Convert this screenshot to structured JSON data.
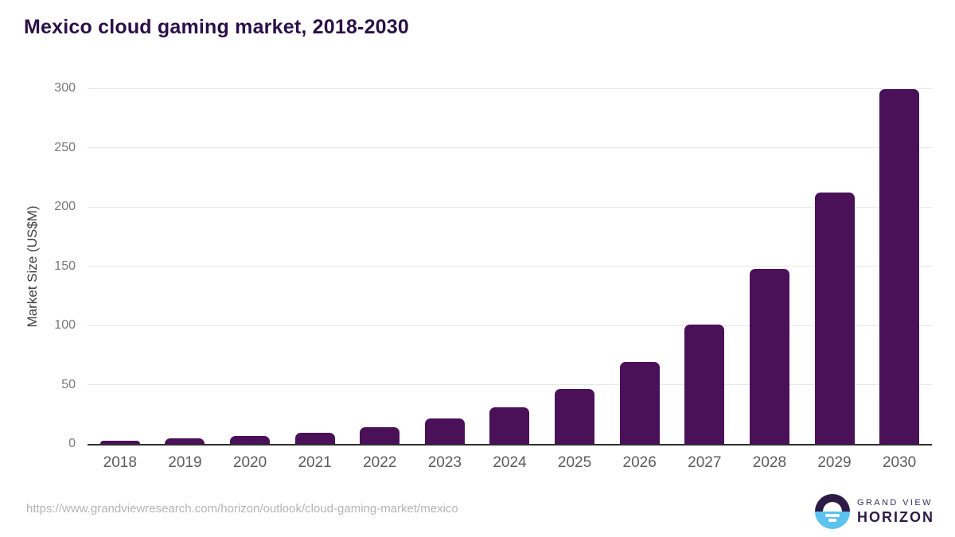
{
  "title": "Mexico cloud gaming market, 2018-2030",
  "chart_data": {
    "type": "bar",
    "title": "Mexico cloud gaming market, 2018-2030",
    "categories": [
      "2018",
      "2019",
      "2020",
      "2021",
      "2022",
      "2023",
      "2024",
      "2025",
      "2026",
      "2027",
      "2028",
      "2029",
      "2030"
    ],
    "values": [
      2.9,
      4.6,
      6.4,
      9.4,
      14.3,
      21.5,
      31.0,
      46.2,
      68.9,
      101.0,
      147.9,
      211.8,
      299.5
    ],
    "xlabel": "",
    "ylabel": "Market Size (US$M)",
    "ylim": [
      0,
      300
    ],
    "yticks": [
      0,
      50,
      100,
      150,
      200,
      250,
      300
    ],
    "grid": true,
    "legend": false,
    "bar_color": "#4a1158"
  },
  "footer": {
    "source_url": "https://www.grandviewresearch.com/horizon/outlook/cloud-gaming-market/mexico",
    "logo": {
      "line1": "GRAND VIEW",
      "line2": "HORIZON"
    }
  },
  "colors": {
    "title_text": "#2b1047",
    "bar": "#4a1158",
    "gridline": "#e7e7e7",
    "axis_line": "#2e2e2e",
    "y_tick_text": "#787878",
    "x_tick_text": "#5c5c5c",
    "y_axis_title_text": "#3f3f3f",
    "url_text": "#b5b5b5",
    "logo_purple": "#2e1a47",
    "logo_blue": "#5bc3ee"
  }
}
